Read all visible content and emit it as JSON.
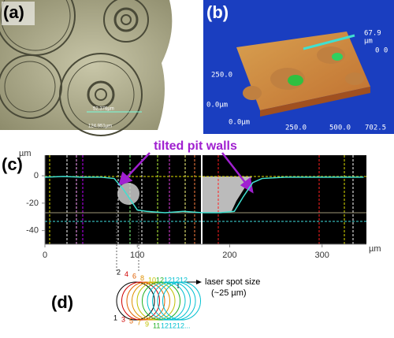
{
  "panels": {
    "a": {
      "label": "(a)",
      "measure_1": "52.376µm",
      "measure_2": "124.951µm"
    },
    "b": {
      "label": "(b)",
      "z_max": "67.9",
      "z_unit": "µm",
      "z_side": "0 0",
      "y_mid": "250.0",
      "y_zero": "0.0µm",
      "x_zero": "0.0µm",
      "x_mid": "250.0",
      "x_mid2": "500.0",
      "x_max": "702.5"
    },
    "c": {
      "label": "(c)",
      "annotation": "tilted pit walls"
    },
    "d": {
      "label": "(d)",
      "top_labels": [
        2,
        4,
        6,
        8,
        10,
        12,
        12,
        12,
        12
      ],
      "top_colors": [
        "#000000",
        "#d00000",
        "#e06000",
        "#e09000",
        "#c0c000",
        "#20b020",
        "#00c0d0",
        "#00c0d0",
        "#00c0d0"
      ],
      "bottom_labels": [
        1,
        3,
        5,
        7,
        9,
        11,
        12,
        12,
        12,
        "..."
      ],
      "bottom_colors": [
        "#000000",
        "#d00000",
        "#e06000",
        "#e09000",
        "#c0c000",
        "#20b020",
        "#00c0d0",
        "#00c0d0",
        "#00c0d0",
        "#00c0d0"
      ],
      "spot_label": "laser spot size",
      "spot_size": "(~25 µm)"
    }
  },
  "chart_data": {
    "type": "line",
    "y_unit": "µm",
    "x_unit": "µm",
    "x": [
      0,
      20,
      40,
      60,
      75,
      85,
      95,
      100,
      110,
      130,
      150,
      170,
      190,
      205,
      215,
      225,
      235,
      260,
      290,
      320,
      345
    ],
    "series": [
      {
        "color": "#40e0d0",
        "values": [
          -1,
          -0.5,
          -1,
          -1,
          -2,
          -10,
          -20,
          -25,
          -26,
          -27,
          -26,
          -27,
          -27,
          -26,
          -15,
          -5,
          -2,
          -1,
          -1,
          -1,
          -1
        ]
      }
    ],
    "xlim": [
      0,
      348
    ],
    "ylim": [
      -50,
      15
    ],
    "xticks": [
      0,
      100,
      200,
      300
    ],
    "yticks": [
      0,
      -20,
      -40
    ]
  }
}
